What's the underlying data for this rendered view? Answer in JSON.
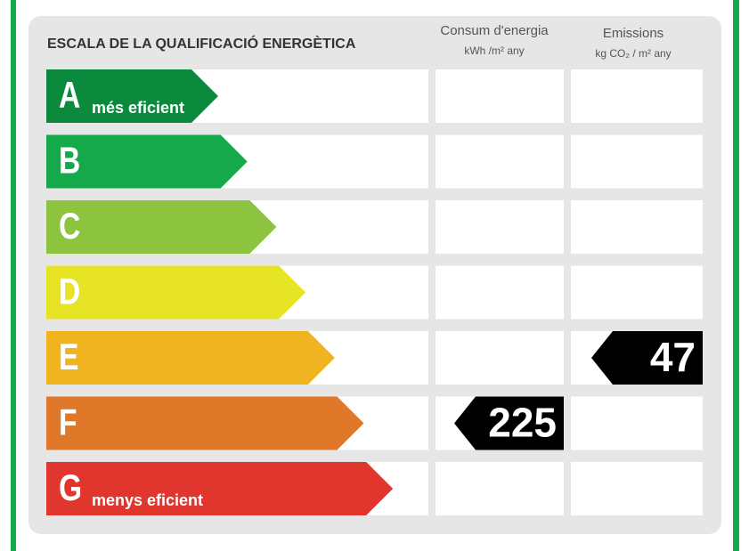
{
  "header": {
    "title": "ESCALA DE LA QUALIFICACIÓ ENERGÈTICA",
    "consumption": {
      "title": "Consum d'energia",
      "unit": "kWh /m² any"
    },
    "emissions": {
      "title": "Emissions",
      "unit": "kg CO₂ / m² any"
    }
  },
  "rows": [
    {
      "letter": "A",
      "note": "més eficient",
      "color": "#0b8a3e",
      "consumption": null,
      "emissions": null
    },
    {
      "letter": "B",
      "note": null,
      "color": "#16a94b",
      "consumption": null,
      "emissions": null
    },
    {
      "letter": "C",
      "note": null,
      "color": "#8cc43f",
      "consumption": null,
      "emissions": null
    },
    {
      "letter": "D",
      "note": null,
      "color": "#e7e325",
      "consumption": null,
      "emissions": null
    },
    {
      "letter": "E",
      "note": null,
      "color": "#efb41f",
      "consumption": null,
      "emissions": 47
    },
    {
      "letter": "F",
      "note": null,
      "color": "#df7829",
      "consumption": 225,
      "emissions": null
    },
    {
      "letter": "G",
      "note": "menys eficient",
      "color": "#e0362d",
      "consumption": null,
      "emissions": null
    }
  ]
}
